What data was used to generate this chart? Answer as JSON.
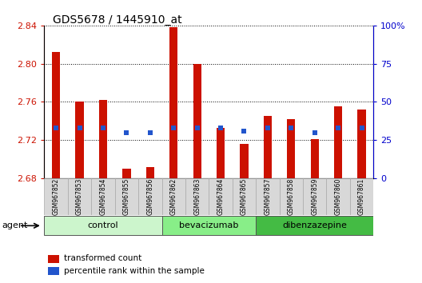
{
  "title": "GDS5678 / 1445910_at",
  "samples": [
    "GSM967852",
    "GSM967853",
    "GSM967854",
    "GSM967855",
    "GSM967856",
    "GSM967862",
    "GSM967863",
    "GSM967864",
    "GSM967865",
    "GSM967857",
    "GSM967858",
    "GSM967859",
    "GSM967860",
    "GSM967861"
  ],
  "transformed_count": [
    2.812,
    2.76,
    2.762,
    2.69,
    2.692,
    2.838,
    2.8,
    2.733,
    2.716,
    2.745,
    2.742,
    2.721,
    2.755,
    2.752
  ],
  "percentile_rank": [
    33,
    33,
    33,
    30,
    30,
    33,
    33,
    33,
    31,
    33,
    33,
    30,
    33,
    33
  ],
  "groups": [
    {
      "label": "control",
      "start": 0,
      "end": 5
    },
    {
      "label": "bevacizumab",
      "start": 5,
      "end": 9
    },
    {
      "label": "dibenzazepine",
      "start": 9,
      "end": 14
    }
  ],
  "group_colors": [
    "#ccf5cc",
    "#88ee88",
    "#44bb44"
  ],
  "ylim_left": [
    2.68,
    2.84
  ],
  "ylim_right": [
    0,
    100
  ],
  "yticks_left": [
    2.68,
    2.72,
    2.76,
    2.8,
    2.84
  ],
  "ytick_labels_left": [
    "2.68",
    "2.72",
    "2.76",
    "2.80",
    "2.84"
  ],
  "yticks_right": [
    0,
    25,
    50,
    75,
    100
  ],
  "ytick_labels_right": [
    "0",
    "25",
    "50",
    "75",
    "100%"
  ],
  "bar_color": "#cc1100",
  "dot_color": "#2255cc",
  "bar_width": 0.35,
  "legend_items": [
    {
      "label": "transformed count",
      "color": "#cc1100"
    },
    {
      "label": "percentile rank within the sample",
      "color": "#2255cc"
    }
  ]
}
